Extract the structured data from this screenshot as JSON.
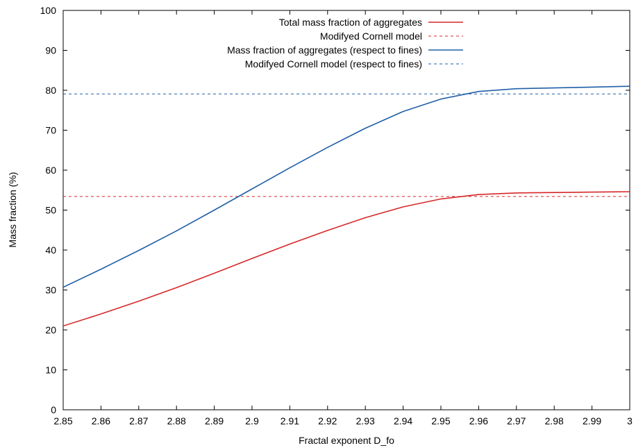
{
  "chart_data": {
    "type": "line",
    "xlabel": "Fractal exponent D_fo",
    "ylabel": "Mass fraction (%)",
    "xlim": [
      2.85,
      3.0
    ],
    "ylim": [
      0,
      100
    ],
    "x_ticks": [
      "2.85",
      "2.86",
      "2.87",
      "2.88",
      "2.89",
      "2.9",
      "2.91",
      "2.92",
      "2.93",
      "2.94",
      "2.95",
      "2.96",
      "2.97",
      "2.98",
      "2.99",
      "3"
    ],
    "y_ticks": [
      "0",
      "10",
      "20",
      "30",
      "40",
      "50",
      "60",
      "70",
      "80",
      "90",
      "100"
    ],
    "grid": false,
    "legend_position": "top-right",
    "series": [
      {
        "name": "Total mass fraction of aggregates",
        "style": "solid",
        "color": "#d62728",
        "x": [
          2.85,
          2.86,
          2.87,
          2.88,
          2.89,
          2.9,
          2.91,
          2.92,
          2.93,
          2.94,
          2.95,
          2.96,
          2.97,
          2.98,
          2.99,
          3.0
        ],
        "y": [
          21.0,
          24.0,
          27.2,
          30.6,
          34.2,
          37.9,
          41.5,
          44.9,
          48.1,
          50.8,
          52.8,
          53.9,
          54.3,
          54.4,
          54.5,
          54.6
        ]
      },
      {
        "name": "Modifyed Cornell model",
        "style": "dashed",
        "color": "#d62728",
        "x": [
          2.85,
          3.0
        ],
        "y": [
          53.4,
          53.4
        ]
      },
      {
        "name": "Mass fraction of aggregates (respect to fines)",
        "style": "solid",
        "color": "#1f5fa8",
        "x": [
          2.85,
          2.86,
          2.87,
          2.88,
          2.89,
          2.9,
          2.91,
          2.92,
          2.93,
          2.94,
          2.95,
          2.96,
          2.97,
          2.98,
          2.99,
          3.0
        ],
        "y": [
          30.7,
          35.2,
          39.9,
          44.8,
          50.0,
          55.3,
          60.6,
          65.7,
          70.5,
          74.7,
          77.8,
          79.7,
          80.4,
          80.6,
          80.8,
          81.0
        ]
      },
      {
        "name": "Modifyed Cornell model (respect to fines)",
        "style": "dashed",
        "color": "#1f5fa8",
        "x": [
          2.85,
          3.0
        ],
        "y": [
          79.1,
          79.1
        ]
      }
    ]
  }
}
